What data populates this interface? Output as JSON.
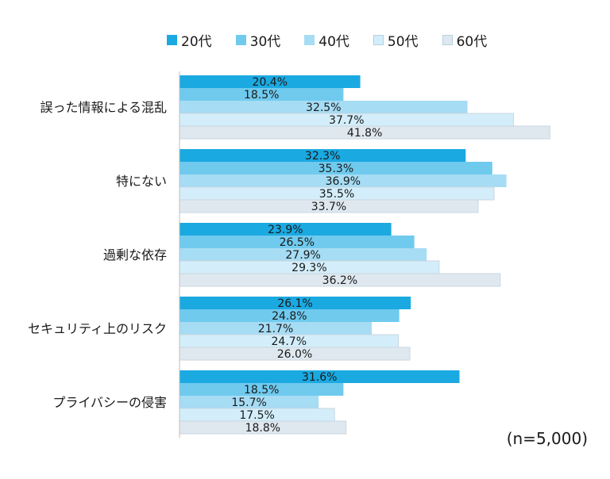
{
  "chart_data": {
    "type": "bar",
    "orientation": "horizontal",
    "categories": [
      "誤った情報による混乱",
      "特にない",
      "過剰な依存",
      "セキュリティ上のリスク",
      "プライバシーの侵害"
    ],
    "series": [
      {
        "name": "20代",
        "values": [
          20.4,
          32.3,
          23.9,
          26.1,
          31.6
        ],
        "color": "#1ba9e1"
      },
      {
        "name": "30代",
        "values": [
          18.5,
          35.3,
          26.5,
          24.8,
          18.5
        ],
        "color": "#6fcaee"
      },
      {
        "name": "40代",
        "values": [
          32.5,
          36.9,
          27.9,
          21.7,
          15.7
        ],
        "color": "#a6dcf4"
      },
      {
        "name": "50代",
        "values": [
          37.7,
          35.5,
          29.3,
          24.7,
          17.5
        ],
        "color": "#d3eefa"
      },
      {
        "name": "60代",
        "values": [
          41.8,
          33.7,
          36.2,
          26.0,
          18.8
        ],
        "color": "#dfe8ef"
      }
    ],
    "value_suffix": "%",
    "xlim": [
      0,
      45
    ],
    "legend_position": "top",
    "grid": false
  },
  "note": "(n=5,000)"
}
